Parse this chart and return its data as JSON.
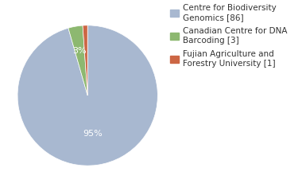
{
  "labels": [
    "Centre for Biodiversity\nGenomics [86]",
    "Canadian Centre for DNA\nBarcoding [3]",
    "Fujian Agriculture and\nForestry University [1]"
  ],
  "values": [
    86,
    3,
    1
  ],
  "pct_labels": [
    "95%",
    "3%",
    ""
  ],
  "colors": [
    "#a8b8d0",
    "#8db870",
    "#cc6644"
  ],
  "background_color": "#ffffff",
  "text_color": "#ffffff",
  "legend_text_color": "#333333",
  "startangle": 90,
  "legend_fontsize": 7.5
}
